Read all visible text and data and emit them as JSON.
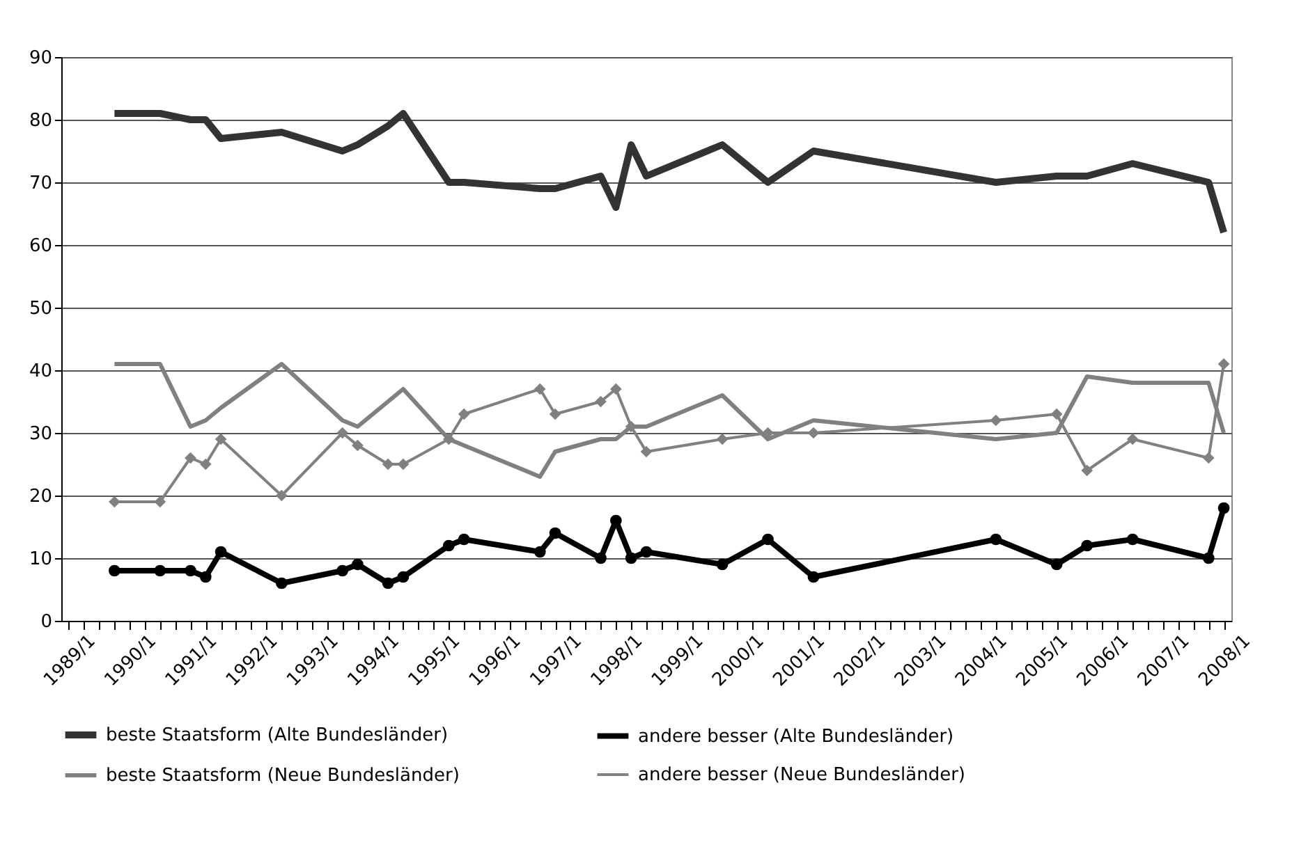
{
  "chart_data": {
    "type": "line",
    "categories": [
      "1989/1",
      null,
      null,
      null,
      "1990/1",
      null,
      null,
      null,
      "1991/1",
      null,
      null,
      null,
      "1992/1",
      null,
      null,
      null,
      "1993/1",
      null,
      null,
      null,
      "1994/1",
      null,
      null,
      null,
      "1995/1",
      null,
      null,
      null,
      "1996/1",
      null,
      null,
      null,
      "1997/1",
      null,
      null,
      null,
      "1998/1",
      null,
      null,
      null,
      "1999/1",
      null,
      null,
      null,
      "2000/1",
      null,
      null,
      null,
      "2001/1",
      null,
      null,
      null,
      "2002/1",
      null,
      null,
      null,
      "2003/1",
      null,
      null,
      null,
      "2004/1",
      null,
      null,
      null,
      "2005/1",
      null,
      null,
      null,
      "2006/1",
      null,
      null,
      null,
      "2007/1",
      null,
      null,
      null,
      "2008/1"
    ],
    "ylim": [
      0,
      90
    ],
    "yticks": [
      0,
      10,
      20,
      30,
      40,
      50,
      60,
      70,
      80,
      90
    ],
    "grid": "y",
    "legend": "bottom",
    "series": [
      {
        "name": "beste Staatsform (Alte Bundesländer)",
        "color": "#333333",
        "marker": "none",
        "values": [
          null,
          null,
          null,
          81,
          null,
          null,
          81,
          null,
          80,
          80,
          77,
          null,
          null,
          null,
          78,
          null,
          null,
          null,
          75,
          76,
          null,
          79,
          81,
          null,
          null,
          70,
          70,
          null,
          null,
          null,
          null,
          69,
          69,
          null,
          null,
          71,
          66,
          76,
          71,
          null,
          null,
          null,
          null,
          76,
          null,
          null,
          70,
          null,
          null,
          75,
          null,
          null,
          null,
          null,
          null,
          null,
          null,
          null,
          null,
          null,
          null,
          70,
          null,
          null,
          null,
          71,
          null,
          71,
          null,
          null,
          73,
          null,
          null,
          null,
          null,
          70,
          62
        ]
      },
      {
        "name": "andere besser (Alte Bundesländer)",
        "color": "#000000",
        "marker": "circle",
        "values": [
          null,
          null,
          null,
          8,
          null,
          null,
          8,
          null,
          8,
          7,
          11,
          null,
          null,
          null,
          6,
          null,
          null,
          null,
          8,
          9,
          null,
          6,
          7,
          null,
          null,
          12,
          13,
          null,
          null,
          null,
          null,
          11,
          14,
          null,
          null,
          10,
          16,
          10,
          11,
          null,
          null,
          null,
          null,
          9,
          null,
          null,
          13,
          null,
          null,
          7,
          null,
          null,
          null,
          null,
          null,
          null,
          null,
          null,
          null,
          null,
          null,
          13,
          null,
          null,
          null,
          9,
          null,
          12,
          null,
          null,
          13,
          null,
          null,
          null,
          null,
          10,
          18
        ]
      },
      {
        "name": "beste Staatsform (Neue Bundesländer)",
        "color": "#808080",
        "marker": "none",
        "values": [
          null,
          null,
          null,
          41,
          null,
          null,
          41,
          null,
          31,
          32,
          34,
          null,
          null,
          null,
          41,
          null,
          null,
          null,
          32,
          31,
          null,
          35,
          37,
          null,
          null,
          29,
          28,
          null,
          null,
          null,
          null,
          23,
          27,
          null,
          null,
          29,
          29,
          31,
          31,
          null,
          null,
          null,
          null,
          36,
          null,
          null,
          29,
          null,
          null,
          32,
          null,
          null,
          null,
          null,
          null,
          null,
          null,
          null,
          null,
          null,
          null,
          29,
          null,
          null,
          null,
          30,
          null,
          39,
          null,
          null,
          38,
          null,
          null,
          null,
          null,
          38,
          30
        ]
      },
      {
        "name": "andere besser (Neue Bundesländer)",
        "color": "#808080",
        "marker": "diamond",
        "values": [
          null,
          null,
          null,
          19,
          null,
          null,
          19,
          null,
          26,
          25,
          29,
          null,
          null,
          null,
          20,
          null,
          null,
          null,
          30,
          28,
          null,
          25,
          25,
          null,
          null,
          29,
          33,
          null,
          null,
          null,
          null,
          37,
          33,
          null,
          null,
          35,
          37,
          31,
          27,
          null,
          null,
          null,
          null,
          29,
          null,
          null,
          30,
          null,
          null,
          30,
          null,
          null,
          null,
          null,
          null,
          null,
          null,
          null,
          null,
          null,
          null,
          32,
          null,
          null,
          null,
          33,
          null,
          24,
          null,
          null,
          29,
          null,
          null,
          null,
          null,
          26,
          41
        ]
      }
    ]
  }
}
